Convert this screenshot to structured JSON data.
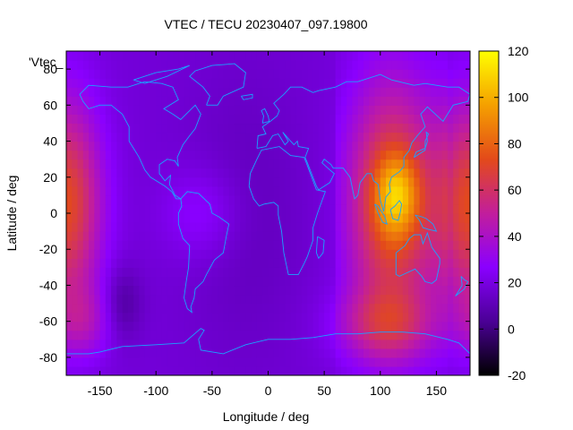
{
  "chart_data": {
    "type": "heatmap",
    "title": "VTEC / TECU 20230407_097.19800",
    "xlabel": "Longitude / deg",
    "ylabel": "Latitude / deg",
    "xlim": [
      -180,
      180
    ],
    "ylim": [
      -90,
      90
    ],
    "x_ticks": [
      -150,
      -100,
      -50,
      0,
      50,
      100,
      150
    ],
    "y_ticks": [
      -80,
      -60,
      -40,
      -20,
      0,
      20,
      40,
      60,
      80
    ],
    "colorbar": {
      "range": [
        -20,
        120
      ],
      "ticks": [
        -20,
        0,
        20,
        40,
        60,
        80,
        100,
        120
      ],
      "palette": [
        "#000000",
        "#4b0096",
        "#8a00ff",
        "#c21e9c",
        "#e34a1a",
        "#f5a000",
        "#ffff00"
      ]
    },
    "series_label": "'Vtec_",
    "background_value": 18,
    "features": [
      {
        "name": "asia-peak",
        "lon": 115,
        "lat": 10,
        "value": 112
      },
      {
        "name": "asia-band",
        "lon": 110,
        "lat": 5,
        "value": 75
      },
      {
        "name": "pacific-peak",
        "lon": -180,
        "lat": 5,
        "value": 72
      },
      {
        "name": "pacific-south",
        "lon": -165,
        "lat": -60,
        "value": 55
      },
      {
        "name": "americas-anomaly",
        "lon": -60,
        "lat": 0,
        "value": 30
      },
      {
        "name": "south-pacific-low",
        "lon": -130,
        "lat": -50,
        "value": 5
      }
    ],
    "coastline_color": "#1aa3ff",
    "grid": false
  }
}
